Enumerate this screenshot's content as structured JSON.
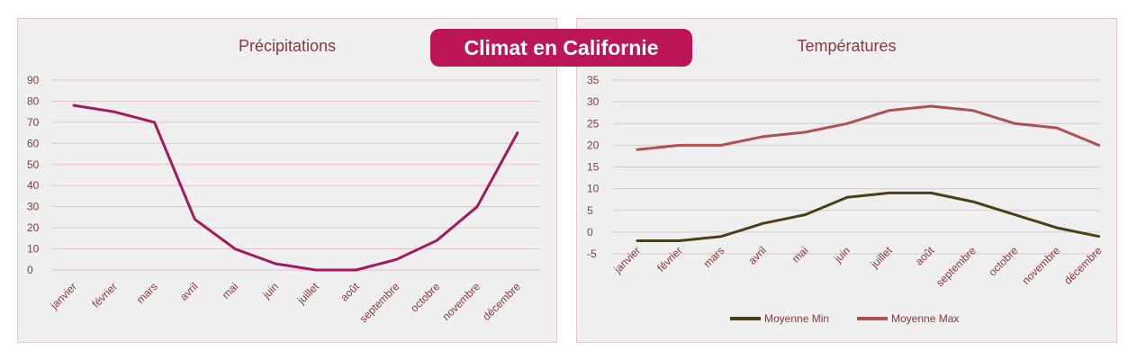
{
  "banner": {
    "title": "Climat en Californie",
    "color": "#bc1558"
  },
  "chart_data": [
    {
      "type": "line",
      "title": "Précipitations",
      "categories": [
        "janvier",
        "février",
        "mars",
        "avril",
        "mai",
        "juin",
        "juillet",
        "août",
        "septembre",
        "octobre",
        "novembre",
        "décembre"
      ],
      "series": [
        {
          "values": [
            78,
            75,
            70,
            24,
            10,
            3,
            0,
            0,
            5,
            14,
            30,
            65
          ],
          "color": "#a3195b"
        }
      ],
      "ylim": [
        0,
        90
      ],
      "yticks": [
        0,
        10,
        20,
        30,
        40,
        50,
        60,
        70,
        80,
        90
      ],
      "grid": true,
      "legend": "none"
    },
    {
      "type": "line",
      "title": "Températures",
      "categories": [
        "janvier",
        "février",
        "mars",
        "avril",
        "mai",
        "juin",
        "juillet",
        "août",
        "septembre",
        "octobre",
        "novembre",
        "décembre"
      ],
      "series": [
        {
          "name": "Moyenne Min",
          "values": [
            -2,
            -2,
            -1,
            2,
            4,
            8,
            9,
            9,
            7,
            4,
            1,
            -1
          ],
          "color": "#4a4018"
        },
        {
          "name": "Moyenne Max",
          "values": [
            19,
            20,
            20,
            22,
            23,
            25,
            28,
            29,
            28,
            25,
            24,
            20
          ],
          "color": "#b0504f"
        }
      ],
      "ylim": [
        -5,
        35
      ],
      "yticks": [
        -5,
        0,
        5,
        10,
        15,
        20,
        25,
        30,
        35
      ],
      "grid": true,
      "legend": "bottom"
    }
  ]
}
